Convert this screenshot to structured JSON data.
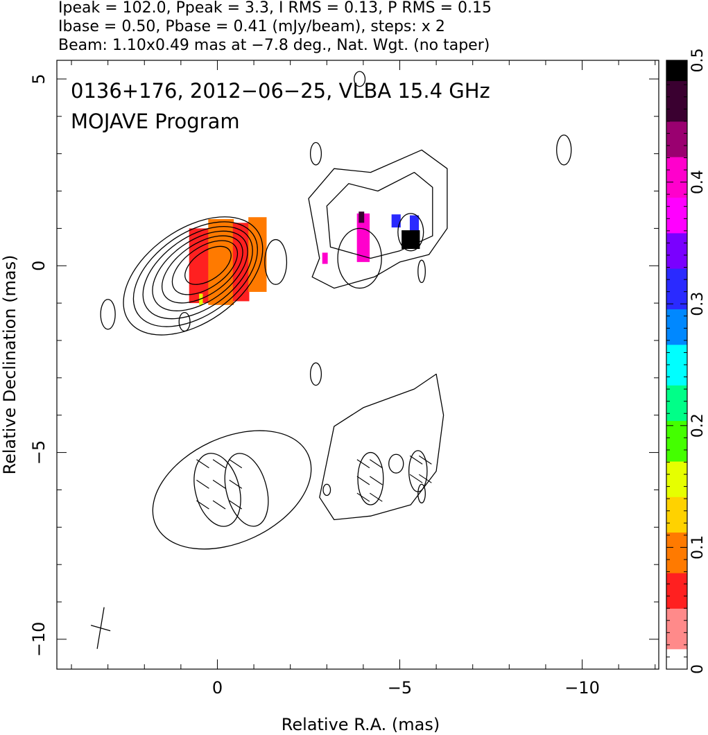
{
  "header": {
    "line1": "Ipeak = 102.0, Ppeak = 3.3, I RMS = 0.13, P RMS = 0.15",
    "line2": "Ibase = 0.50, Pbase = 0.41 (mJy/beam), steps: x 2",
    "line3": "Beam: 1.10x0.49 mas at −7.8 deg., Nat. Wgt. (no taper)"
  },
  "chart_data": {
    "type": "heatmap",
    "title_line1": "0136+176, 2012−06−25, VLBA 15.4 GHz",
    "title_line2": "MOJAVE Program",
    "xlabel": "Relative R.A. (mas)",
    "ylabel": "Relative Declination (mas)",
    "xlim": [
      4.4,
      -12.1
    ],
    "ylim": [
      -10.8,
      5.5
    ],
    "x_ticks": [
      0,
      -5,
      -10
    ],
    "x_tick_labels": [
      "0",
      "−5",
      "−10"
    ],
    "y_ticks": [
      5,
      0,
      -5,
      -10
    ],
    "y_tick_labels": [
      "5",
      "0",
      "−5",
      "−10"
    ],
    "colorbar": {
      "range": [
        0,
        0.5
      ],
      "ticks": [
        0,
        0.1,
        0.2,
        0.3,
        0.4,
        0.5
      ],
      "tick_labels": [
        "0",
        "0.1",
        "0.2",
        "0.3",
        "0.4",
        "0.5"
      ],
      "colors": [
        "#ffffff",
        "#ff8a8a",
        "#ff2020",
        "#ff7a00",
        "#ffd200",
        "#e6ff00",
        "#44ff00",
        "#00ff88",
        "#00ffff",
        "#0088ff",
        "#2a2aff",
        "#7a00ff",
        "#ff00ff",
        "#ff00cc",
        "#9a0070",
        "#3a0030",
        "#000000"
      ]
    },
    "panels": [
      {
        "name": "total intensity with fractional polarization",
        "x_offset": 0,
        "y_offset": 0,
        "core_center": [
          0.05,
          0.15
        ],
        "core_contours": [
          {
            "rx": 2.15,
            "ry": 1.25,
            "angle": 35
          },
          {
            "rx": 1.92,
            "ry": 1.1,
            "angle": 35
          },
          {
            "rx": 1.7,
            "ry": 0.96,
            "angle": 35
          },
          {
            "rx": 1.48,
            "ry": 0.82,
            "angle": 35
          },
          {
            "rx": 1.26,
            "ry": 0.68,
            "angle": 35
          },
          {
            "rx": 1.02,
            "ry": 0.54,
            "angle": 35
          },
          {
            "rx": 0.72,
            "ry": 0.38,
            "angle": 35
          }
        ],
        "knots": [
          {
            "x": -1.6,
            "y": 0.1,
            "rx": 0.3,
            "ry": 0.6
          },
          {
            "x": -3.9,
            "y": 0.2,
            "rx": 0.6,
            "ry": 0.8
          },
          {
            "x": -5.3,
            "y": 0.9,
            "rx": 0.35,
            "ry": 0.5
          },
          {
            "x": 3.0,
            "y": -1.3,
            "rx": 0.2,
            "ry": 0.4
          },
          {
            "x": 0.9,
            "y": -1.5,
            "rx": 0.15,
            "ry": 0.25
          },
          {
            "x": -2.7,
            "y": 3.0,
            "rx": 0.15,
            "ry": 0.3
          },
          {
            "x": -9.5,
            "y": 3.1,
            "rx": 0.2,
            "ry": 0.4
          },
          {
            "x": -5.6,
            "y": -0.15,
            "rx": 0.1,
            "ry": 0.3
          },
          {
            "x": -3.9,
            "y": 5.0,
            "rx": 0.15,
            "ry": 0.2
          }
        ],
        "polarization_pixels": [
          {
            "x": 0.5,
            "y": 0.0,
            "w": 0.55,
            "h": 2.0,
            "frac": 0.07
          },
          {
            "x": -0.1,
            "y": 0.1,
            "w": 0.7,
            "h": 2.3,
            "frac": 0.09
          },
          {
            "x": -0.65,
            "y": 0.1,
            "w": 0.45,
            "h": 2.1,
            "frac": 0.06
          },
          {
            "x": -1.1,
            "y": 0.3,
            "w": 0.5,
            "h": 2.0,
            "frac": 0.08
          },
          {
            "x": 0.45,
            "y": -0.9,
            "w": 0.1,
            "h": 0.3,
            "frac": 0.16
          },
          {
            "x": -4.0,
            "y": 0.75,
            "w": 0.35,
            "h": 1.3,
            "frac": 0.42
          },
          {
            "x": -3.95,
            "y": 1.3,
            "w": 0.15,
            "h": 0.3,
            "frac": 0.48
          },
          {
            "x": -4.9,
            "y": 1.2,
            "w": 0.25,
            "h": 0.35,
            "frac": 0.3
          },
          {
            "x": -5.4,
            "y": 1.1,
            "w": 0.25,
            "h": 0.5,
            "frac": 0.32
          },
          {
            "x": -5.3,
            "y": 0.7,
            "w": 0.5,
            "h": 0.5,
            "frac": 0.5
          },
          {
            "x": -2.95,
            "y": 0.2,
            "w": 0.15,
            "h": 0.3,
            "frac": 0.41
          }
        ]
      },
      {
        "name": "polarized intensity with EVPA ticks",
        "x_offset": 0,
        "y_offset": -6.0,
        "core_contours": [
          {
            "x": -0.4,
            "y": -6.0,
            "rx": 2.3,
            "ry": 1.4,
            "angle": 25
          },
          {
            "x": 0.0,
            "y": -6.0,
            "rx": 0.6,
            "ry": 1.0,
            "angle": 15
          },
          {
            "x": -0.8,
            "y": -6.0,
            "rx": 0.55,
            "ry": 1.0,
            "angle": 15
          }
        ],
        "knots": [
          {
            "x": -4.2,
            "y": -5.7,
            "rx": 0.35,
            "ry": 0.7
          },
          {
            "x": -4.9,
            "y": -5.3,
            "rx": 0.2,
            "ry": 0.25
          },
          {
            "x": -5.5,
            "y": -5.5,
            "rx": 0.25,
            "ry": 0.55
          },
          {
            "x": -2.7,
            "y": -2.9,
            "rx": 0.15,
            "ry": 0.3
          },
          {
            "x": -3.0,
            "y": -6.0,
            "rx": 0.1,
            "ry": 0.15
          },
          {
            "x": -5.6,
            "y": -6.1,
            "rx": 0.1,
            "ry": 0.25
          }
        ]
      }
    ]
  }
}
